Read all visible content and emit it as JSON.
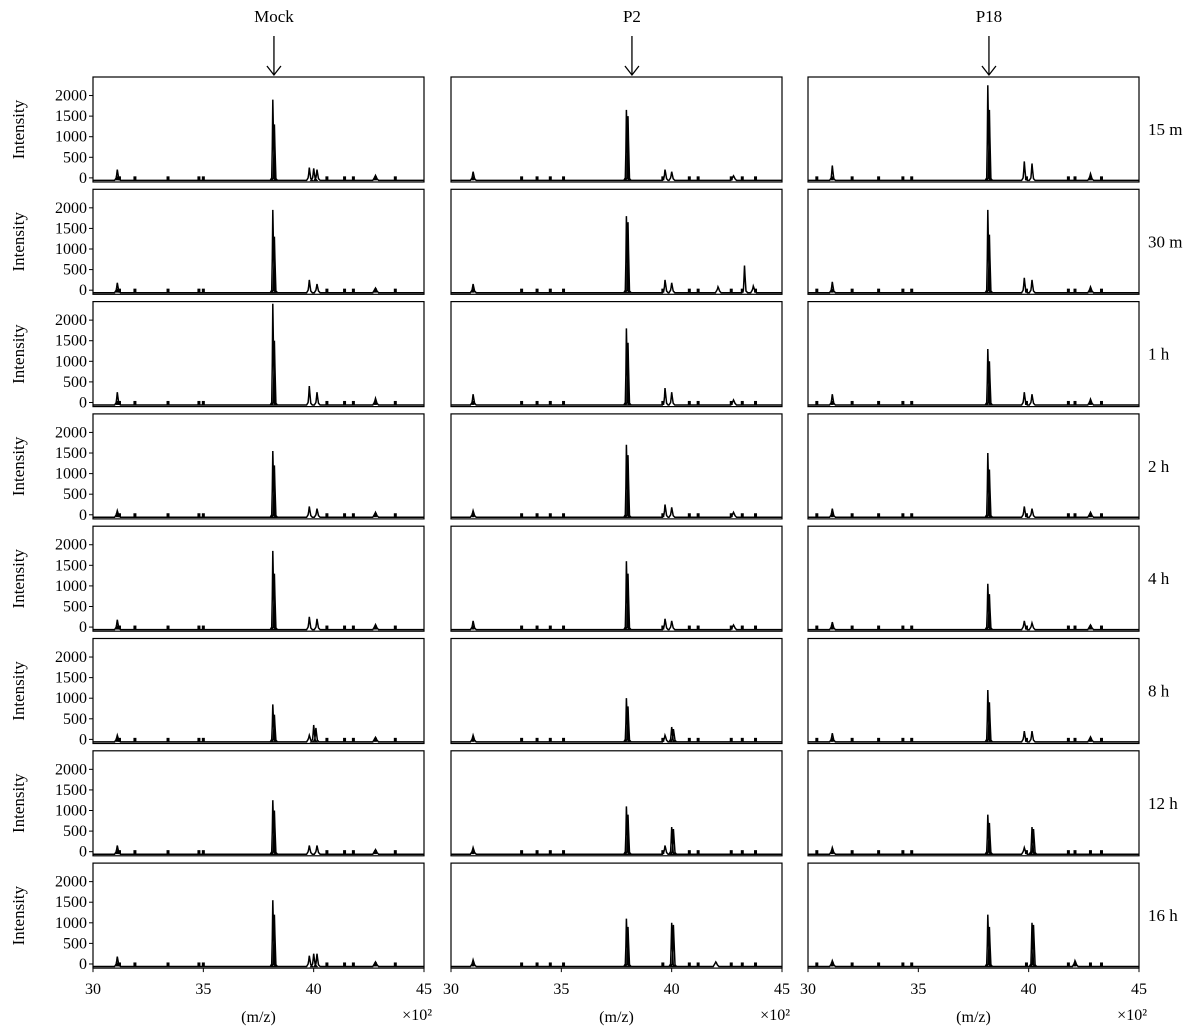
{
  "chart_data": {
    "type": "line",
    "columns": [
      "Mock",
      "P2",
      "P18"
    ],
    "rows": [
      "15 m",
      "30 m",
      "1 h",
      "2 h",
      "4 h",
      "8 h",
      "12 h",
      "16 h"
    ],
    "ylabel": "Intensity",
    "xlabel": "(m/z)",
    "x_multiplier": "×10²",
    "xlim": [
      30,
      45
    ],
    "ylim": [
      -100,
      2450
    ],
    "xticks": [
      30,
      35,
      40,
      45
    ],
    "yticks": [
      0,
      500,
      1000,
      1500,
      2000
    ],
    "xtick_labels": [
      "30",
      "35",
      "40",
      "45"
    ],
    "ytick_labels": [
      "0",
      "500",
      "1000",
      "1500",
      "2000"
    ],
    "arrow_x": 38.2,
    "grid": false,
    "legend": "none",
    "line_color": "#000000",
    "baseline": -60,
    "noise_points": {
      "Mock": [
        31.1,
        31.2,
        31.9,
        33.4,
        34.8,
        35.0,
        40.6,
        41.4,
        41.8,
        42.8,
        43.7
      ],
      "P2": [
        31.0,
        33.2,
        33.9,
        34.5,
        35.1,
        39.6,
        40.8,
        41.2,
        42.7,
        43.2,
        43.8
      ],
      "P18": [
        30.4,
        31.1,
        32.0,
        33.2,
        34.3,
        34.7,
        39.9,
        41.8,
        42.1,
        42.8,
        43.3
      ]
    },
    "panels": [
      {
        "column": "Mock",
        "row": "15 m",
        "peaks": [
          {
            "x": 31.1,
            "y": 200
          },
          {
            "x": 38.15,
            "y": 1900
          },
          {
            "x": 38.22,
            "y": 1300
          },
          {
            "x": 39.8,
            "y": 250
          },
          {
            "x": 40.0,
            "y": 230
          },
          {
            "x": 40.15,
            "y": 200
          },
          {
            "x": 42.8,
            "y": 60
          }
        ]
      },
      {
        "column": "P2",
        "row": "15 m",
        "peaks": [
          {
            "x": 31.0,
            "y": 150
          },
          {
            "x": 37.95,
            "y": 1650
          },
          {
            "x": 38.02,
            "y": 1500
          },
          {
            "x": 39.7,
            "y": 200
          },
          {
            "x": 40.0,
            "y": 150
          },
          {
            "x": 42.8,
            "y": 50
          }
        ]
      },
      {
        "column": "P18",
        "row": "15 m",
        "peaks": [
          {
            "x": 31.1,
            "y": 300
          },
          {
            "x": 38.15,
            "y": 2250
          },
          {
            "x": 38.22,
            "y": 1650
          },
          {
            "x": 39.8,
            "y": 400
          },
          {
            "x": 40.15,
            "y": 350
          },
          {
            "x": 42.8,
            "y": 100
          }
        ]
      },
      {
        "column": "Mock",
        "row": "30 m",
        "peaks": [
          {
            "x": 31.1,
            "y": 180
          },
          {
            "x": 38.15,
            "y": 1950
          },
          {
            "x": 38.22,
            "y": 1300
          },
          {
            "x": 39.8,
            "y": 250
          },
          {
            "x": 40.15,
            "y": 150
          },
          {
            "x": 42.8,
            "y": 50
          }
        ]
      },
      {
        "column": "P2",
        "row": "30 m",
        "peaks": [
          {
            "x": 31.0,
            "y": 150
          },
          {
            "x": 37.95,
            "y": 1800
          },
          {
            "x": 38.02,
            "y": 1650
          },
          {
            "x": 39.7,
            "y": 250
          },
          {
            "x": 40.0,
            "y": 180
          },
          {
            "x": 42.1,
            "y": 80
          },
          {
            "x": 43.3,
            "y": 600
          },
          {
            "x": 43.7,
            "y": 100
          }
        ]
      },
      {
        "column": "P18",
        "row": "30 m",
        "peaks": [
          {
            "x": 31.1,
            "y": 200
          },
          {
            "x": 38.15,
            "y": 1950
          },
          {
            "x": 38.22,
            "y": 1350
          },
          {
            "x": 39.8,
            "y": 300
          },
          {
            "x": 40.15,
            "y": 250
          },
          {
            "x": 42.8,
            "y": 80
          }
        ]
      },
      {
        "column": "Mock",
        "row": "1 h",
        "peaks": [
          {
            "x": 31.1,
            "y": 250
          },
          {
            "x": 38.15,
            "y": 2400
          },
          {
            "x": 38.22,
            "y": 1500
          },
          {
            "x": 39.8,
            "y": 400
          },
          {
            "x": 40.15,
            "y": 250
          },
          {
            "x": 42.8,
            "y": 100
          }
        ]
      },
      {
        "column": "P2",
        "row": "1 h",
        "peaks": [
          {
            "x": 31.0,
            "y": 200
          },
          {
            "x": 37.95,
            "y": 1800
          },
          {
            "x": 38.02,
            "y": 1450
          },
          {
            "x": 39.7,
            "y": 350
          },
          {
            "x": 40.0,
            "y": 250
          },
          {
            "x": 42.8,
            "y": 60
          }
        ]
      },
      {
        "column": "P18",
        "row": "1 h",
        "peaks": [
          {
            "x": 31.1,
            "y": 200
          },
          {
            "x": 38.15,
            "y": 1300
          },
          {
            "x": 38.22,
            "y": 1000
          },
          {
            "x": 39.8,
            "y": 250
          },
          {
            "x": 40.15,
            "y": 200
          },
          {
            "x": 42.8,
            "y": 80
          }
        ]
      },
      {
        "column": "Mock",
        "row": "2 h",
        "peaks": [
          {
            "x": 31.1,
            "y": 100
          },
          {
            "x": 38.15,
            "y": 1550
          },
          {
            "x": 38.22,
            "y": 1200
          },
          {
            "x": 39.8,
            "y": 200
          },
          {
            "x": 40.15,
            "y": 150
          },
          {
            "x": 42.8,
            "y": 60
          }
        ]
      },
      {
        "column": "P2",
        "row": "2 h",
        "peaks": [
          {
            "x": 31.0,
            "y": 100
          },
          {
            "x": 37.95,
            "y": 1700
          },
          {
            "x": 38.02,
            "y": 1450
          },
          {
            "x": 39.7,
            "y": 250
          },
          {
            "x": 40.0,
            "y": 180
          },
          {
            "x": 42.8,
            "y": 60
          }
        ]
      },
      {
        "column": "P18",
        "row": "2 h",
        "peaks": [
          {
            "x": 31.1,
            "y": 150
          },
          {
            "x": 38.15,
            "y": 1500
          },
          {
            "x": 38.22,
            "y": 1100
          },
          {
            "x": 39.8,
            "y": 200
          },
          {
            "x": 40.15,
            "y": 150
          },
          {
            "x": 42.8,
            "y": 60
          }
        ]
      },
      {
        "column": "Mock",
        "row": "4 h",
        "peaks": [
          {
            "x": 31.1,
            "y": 180
          },
          {
            "x": 38.15,
            "y": 1850
          },
          {
            "x": 38.22,
            "y": 1300
          },
          {
            "x": 39.8,
            "y": 250
          },
          {
            "x": 40.15,
            "y": 200
          },
          {
            "x": 42.8,
            "y": 60
          }
        ]
      },
      {
        "column": "P2",
        "row": "4 h",
        "peaks": [
          {
            "x": 31.0,
            "y": 150
          },
          {
            "x": 37.95,
            "y": 1600
          },
          {
            "x": 38.02,
            "y": 1300
          },
          {
            "x": 39.7,
            "y": 200
          },
          {
            "x": 40.0,
            "y": 150
          },
          {
            "x": 42.8,
            "y": 50
          }
        ]
      },
      {
        "column": "P18",
        "row": "4 h",
        "peaks": [
          {
            "x": 31.1,
            "y": 120
          },
          {
            "x": 38.15,
            "y": 1050
          },
          {
            "x": 38.22,
            "y": 800
          },
          {
            "x": 39.8,
            "y": 150
          },
          {
            "x": 40.15,
            "y": 100
          },
          {
            "x": 42.8,
            "y": 50
          }
        ]
      },
      {
        "column": "Mock",
        "row": "8 h",
        "peaks": [
          {
            "x": 31.1,
            "y": 100
          },
          {
            "x": 38.15,
            "y": 850
          },
          {
            "x": 38.22,
            "y": 600
          },
          {
            "x": 39.8,
            "y": 100
          },
          {
            "x": 40.0,
            "y": 350
          },
          {
            "x": 40.1,
            "y": 280
          },
          {
            "x": 42.8,
            "y": 50
          }
        ]
      },
      {
        "column": "P2",
        "row": "8 h",
        "peaks": [
          {
            "x": 31.0,
            "y": 100
          },
          {
            "x": 37.95,
            "y": 1000
          },
          {
            "x": 38.02,
            "y": 800
          },
          {
            "x": 39.7,
            "y": 100
          },
          {
            "x": 40.0,
            "y": 300
          },
          {
            "x": 40.08,
            "y": 250
          }
        ]
      },
      {
        "column": "P18",
        "row": "8 h",
        "peaks": [
          {
            "x": 31.1,
            "y": 150
          },
          {
            "x": 38.15,
            "y": 1200
          },
          {
            "x": 38.22,
            "y": 900
          },
          {
            "x": 39.8,
            "y": 200
          },
          {
            "x": 40.15,
            "y": 200
          },
          {
            "x": 42.8,
            "y": 60
          }
        ]
      },
      {
        "column": "Mock",
        "row": "12 h",
        "peaks": [
          {
            "x": 31.1,
            "y": 150
          },
          {
            "x": 38.15,
            "y": 1250
          },
          {
            "x": 38.22,
            "y": 1000
          },
          {
            "x": 39.8,
            "y": 150
          },
          {
            "x": 40.15,
            "y": 150
          },
          {
            "x": 42.8,
            "y": 50
          }
        ]
      },
      {
        "column": "P2",
        "row": "12 h",
        "peaks": [
          {
            "x": 31.0,
            "y": 100
          },
          {
            "x": 37.95,
            "y": 1100
          },
          {
            "x": 38.02,
            "y": 900
          },
          {
            "x": 39.7,
            "y": 150
          },
          {
            "x": 40.0,
            "y": 600
          },
          {
            "x": 40.08,
            "y": 550
          }
        ]
      },
      {
        "column": "P18",
        "row": "12 h",
        "peaks": [
          {
            "x": 31.1,
            "y": 100
          },
          {
            "x": 38.15,
            "y": 900
          },
          {
            "x": 38.22,
            "y": 700
          },
          {
            "x": 39.8,
            "y": 100
          },
          {
            "x": 40.15,
            "y": 600
          },
          {
            "x": 40.22,
            "y": 550
          }
        ]
      },
      {
        "column": "Mock",
        "row": "16 h",
        "peaks": [
          {
            "x": 31.1,
            "y": 180
          },
          {
            "x": 38.15,
            "y": 1550
          },
          {
            "x": 38.22,
            "y": 1200
          },
          {
            "x": 39.8,
            "y": 200
          },
          {
            "x": 40.0,
            "y": 250
          },
          {
            "x": 40.15,
            "y": 250
          },
          {
            "x": 42.8,
            "y": 50
          }
        ]
      },
      {
        "column": "P2",
        "row": "16 h",
        "peaks": [
          {
            "x": 31.0,
            "y": 100
          },
          {
            "x": 37.95,
            "y": 1100
          },
          {
            "x": 38.02,
            "y": 900
          },
          {
            "x": 40.0,
            "y": 1000
          },
          {
            "x": 40.08,
            "y": 950
          },
          {
            "x": 42.0,
            "y": 50
          }
        ]
      },
      {
        "column": "P18",
        "row": "16 h",
        "peaks": [
          {
            "x": 31.1,
            "y": 80
          },
          {
            "x": 38.15,
            "y": 1200
          },
          {
            "x": 38.22,
            "y": 900
          },
          {
            "x": 40.15,
            "y": 1000
          },
          {
            "x": 40.22,
            "y": 950
          },
          {
            "x": 42.1,
            "y": 80
          }
        ]
      }
    ]
  }
}
